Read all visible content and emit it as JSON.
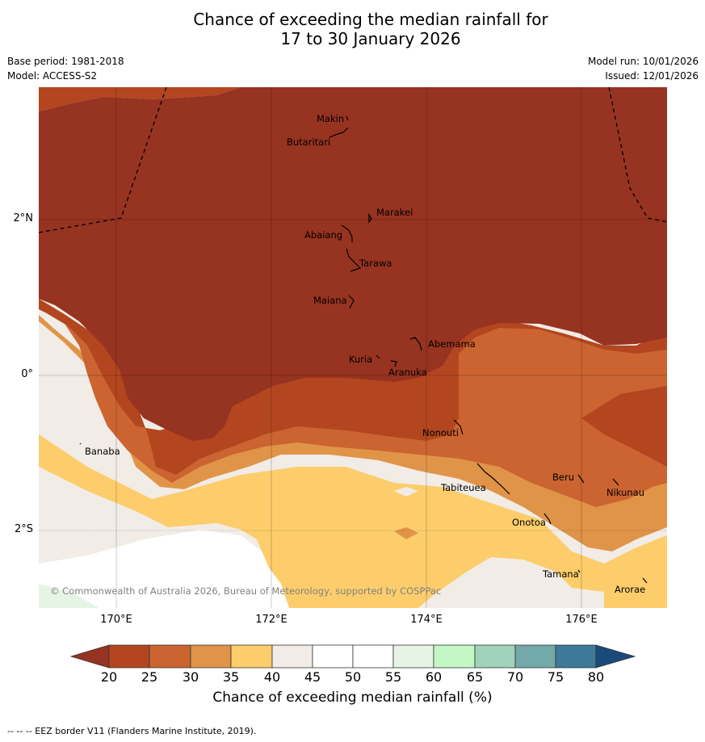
{
  "header": {
    "title_line1": "Chance of exceeding the median rainfall for",
    "title_line2": "17 to 30 January 2026",
    "base_period": "Base period: 1981-2018",
    "model": "Model: ACCESS-S2",
    "model_run": "Model run: 10/01/2026",
    "issued": "Issued: 12/01/2026"
  },
  "map": {
    "copyright": "© Commonwealth of Australia 2026, Bureau of Meteorology, supported by COSPPac",
    "lon_ticks": [
      "170°E",
      "172°E",
      "174°E",
      "176°E"
    ],
    "lat_ticks": [
      "2°N",
      "0°",
      "2°S"
    ],
    "islands": [
      "Makin",
      "Butaritari",
      "Marakei",
      "Abaiang",
      "Tarawa",
      "Maiana",
      "Abemama",
      "Kuria",
      "Aranuka",
      "Nonouti",
      "Banaba",
      "Tabiteuea",
      "Beru",
      "Nikunau",
      "Onotoa",
      "Tamana",
      "Arorae"
    ],
    "colors": {
      "20-25": "#b3461f",
      "25-30": "#cb6431",
      "30-35": "#e09448",
      "35-40": "#fdcd6b",
      "40-45": "#f1ece6",
      "45-55": "#ffffff",
      "55-60": "#e6f4e6",
      "60-65": "#c5f7c5",
      "65-70": "#a0d3b9",
      "70-75": "#73a9a9",
      "75-80": "#3d7999",
      "below-20": "#973321",
      "above-80": "#1a4a7a"
    }
  },
  "colorbar": {
    "ticks": [
      "20",
      "25",
      "30",
      "35",
      "40",
      "45",
      "50",
      "55",
      "60",
      "65",
      "70",
      "75",
      "80"
    ],
    "title": "Chance of exceeding median rainfall (%)"
  },
  "footnote": "-- -- -- EEZ border V11 (Flanders Marine Institute, 2019)."
}
